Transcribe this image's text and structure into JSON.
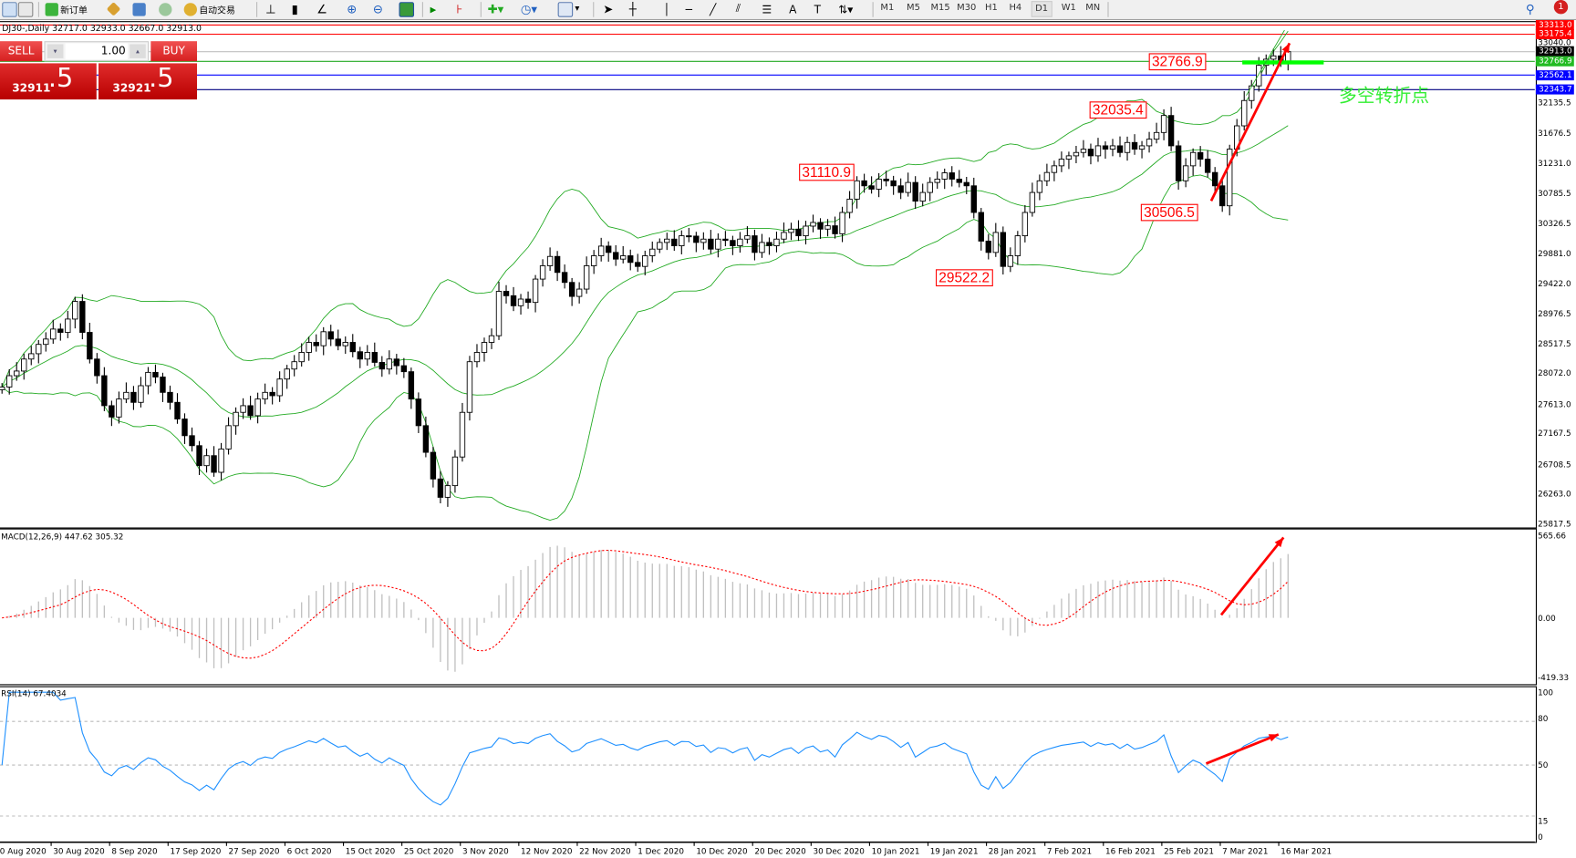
{
  "toolbar": {
    "new_order": "新订单",
    "auto_trading": "自动交易",
    "timeframes": [
      "M1",
      "M5",
      "M15",
      "M30",
      "H1",
      "H4",
      "D1",
      "W1",
      "MN"
    ],
    "active_timeframe": "D1",
    "notification_count": "1"
  },
  "chart": {
    "title": "DJ30-,Daily  32717.0 32933.0 32667.0 32913.0"
  },
  "trade_panel": {
    "sell_label": "SELL",
    "buy_label": "BUY",
    "volume": "1.00",
    "sell_price_main": "32911",
    "sell_price_frac": ".5",
    "buy_price_main": "32921",
    "buy_price_frac": ".5"
  },
  "annotations": {
    "a1": "32766.9",
    "a2": "32035.4",
    "a3": "31110.9",
    "a4": "30506.5",
    "a5": "29522.2",
    "note": "多空转折点"
  },
  "price_axis": {
    "ticks": [
      32135.5,
      31676.5,
      31231.0,
      30785.5,
      30326.5,
      29881.0,
      29422.0,
      28976.5,
      28517.5,
      28072.0,
      27613.0,
      27167.5,
      26708.5,
      26263.0,
      25817.5
    ],
    "tick_labels": [
      "32135.5",
      "31676.5",
      "31231.0",
      "30785.5",
      "30326.5",
      "29881.0",
      "29422.0",
      "28976.5",
      "28517.5",
      "28072.0",
      "27613.0",
      "27167.5",
      "26708.5",
      "26263.0",
      "25817.5"
    ],
    "extra_label": "33040.0"
  },
  "levels": [
    {
      "value": 33313.0,
      "label": "33313.0",
      "color": "#ff0000"
    },
    {
      "value": 33175.4,
      "label": "33175.4",
      "color": "#ff0000"
    },
    {
      "value": 32913.0,
      "label": "32913.0",
      "color": "#000000",
      "line": "#c0c0c0"
    },
    {
      "value": 32766.9,
      "label": "32766.9",
      "color": "#22bb22",
      "line": "#22aa22"
    },
    {
      "value": 32562.1,
      "label": "32562.1",
      "color": "#0000ff"
    },
    {
      "value": 32343.7,
      "label": "32343.7",
      "color": "#0000ff",
      "line": "#000080"
    }
  ],
  "macd": {
    "label": "MACD(12,26,9) 447.62 305.32",
    "max_label": "565.66",
    "zero_label": "0.00",
    "min_label": "-419.33",
    "range": [
      -419.33,
      565.66
    ]
  },
  "rsi": {
    "label": "RSI(14) 67.4034",
    "levels": [
      "100",
      "80",
      "50",
      "15",
      "0"
    ]
  },
  "dates": [
    "20 Aug 2020",
    "30 Aug 2020",
    "8 Sep 2020",
    "17 Sep 2020",
    "27 Sep 2020",
    "6 Oct 2020",
    "15 Oct 2020",
    "25 Oct 2020",
    "3 Nov 2020",
    "12 Nov 2020",
    "22 Nov 2020",
    "1 Dec 2020",
    "10 Dec 2020",
    "20 Dec 2020",
    "30 Dec 2020",
    "10 Jan 2021",
    "19 Jan 2021",
    "28 Jan 2021",
    "7 Feb 2021",
    "16 Feb 2021",
    "25 Feb 2021",
    "7 Mar 2021",
    "16 Mar 2021"
  ],
  "chart_data": {
    "type": "candlestick",
    "symbol": "DJ30-",
    "timeframe": "Daily",
    "ylim": [
      25817.5,
      33313.0
    ],
    "indicators": [
      "Bollinger Bands",
      "MACD(12,26,9)",
      "RSI(14)"
    ],
    "colors": {
      "bands": "#22aa22",
      "macd_hist": "#c0c0c0",
      "macd_signal": "#ff0000",
      "rsi": "#1e90ff",
      "arrow": "#ff0000",
      "support_bar": "#00ff00",
      "note": "#33ee33"
    },
    "close": [
      27880,
      28050,
      28120,
      28300,
      28380,
      28520,
      28600,
      28750,
      28700,
      28900,
      29165,
      28700,
      28300,
      28050,
      27600,
      27430,
      27700,
      27800,
      27650,
      27900,
      28100,
      28030,
      27800,
      27650,
      27400,
      27150,
      27000,
      26700,
      26850,
      26600,
      26950,
      27300,
      27500,
      27600,
      27450,
      27700,
      27800,
      27750,
      28000,
      28150,
      28260,
      28400,
      28550,
      28500,
      28710,
      28600,
      28500,
      28550,
      28410,
      28300,
      28400,
      28250,
      28150,
      28300,
      28200,
      28110,
      27700,
      27300,
      26900,
      26500,
      26225,
      26400,
      26830,
      27500,
      28260,
      28400,
      28550,
      28650,
      29316,
      29250,
      29100,
      29200,
      29150,
      29500,
      29700,
      29840,
      29600,
      29450,
      29240,
      29350,
      29700,
      29850,
      29995,
      29900,
      29800,
      29850,
      29750,
      29690,
      29850,
      29950,
      30050,
      30100,
      30000,
      30150,
      30145,
      30050,
      30100,
      29950,
      30100,
      30080,
      30000,
      30100,
      30150,
      29900,
      30050,
      30000,
      30100,
      30200,
      30250,
      30150,
      30295,
      30350,
      30250,
      30300,
      30180,
      30500,
      30700,
      30975,
      30900,
      30850,
      31000,
      30975,
      30900,
      30800,
      30950,
      30670,
      30800,
      30950,
      31000,
      31095,
      31000,
      30950,
      30900,
      30500,
      30070,
      29900,
      30200,
      29690,
      29850,
      30150,
      30500,
      30800,
      30975,
      31100,
      31200,
      31300,
      31350,
      31400,
      31450,
      31350,
      31500,
      31450,
      31500,
      31400,
      31550,
      31450,
      31500,
      31600,
      31700,
      31955,
      31500,
      30975,
      31200,
      31400,
      31300,
      31100,
      30900,
      30600,
      31450,
      31800,
      32180,
      32400,
      32708,
      32800,
      32850,
      32750,
      32913
    ]
  }
}
